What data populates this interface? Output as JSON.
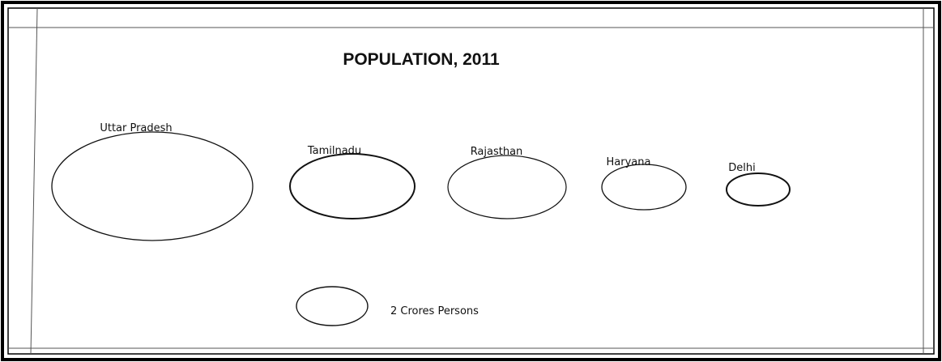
{
  "title": "POPULATION, 2011",
  "nodes": [
    {
      "label": "Uttar Pradesh"
    },
    {
      "label": "Tamilnadu"
    },
    {
      "label": "Rajasthan"
    },
    {
      "label": "Haryana"
    },
    {
      "label": "Delhi"
    }
  ],
  "legend": {
    "label": "2 Crores Persons"
  }
}
